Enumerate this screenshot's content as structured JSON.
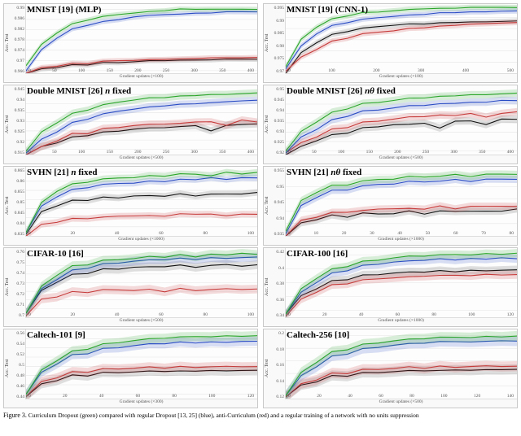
{
  "figure_caption_prefix": "Figure 3.",
  "figure_caption": "Curriculum Dropout (green) compared with regular Dropout [13, 25] (blue), anti-Curriculum (red) and a regular training of a network with no units suppression",
  "colors": {
    "curriculum": "#2aa52a",
    "curriculum_band": "rgba(42,165,42,0.18)",
    "dropout": "#2a4cc4",
    "dropout_band": "rgba(42,76,196,0.18)",
    "anticurriculum": "#c63a3a",
    "anticurriculum_band": "rgba(198,58,58,0.18)",
    "none": "#111111",
    "none_band": "rgba(0,0,0,0.12)",
    "grid": "#e5e5e5",
    "panel_bg": "#f9f9f9"
  },
  "global": {
    "line_width": 1,
    "title_fontsize": 11,
    "tick_fontsize": 5.5,
    "axis_label_fontsize": 6,
    "ylabel": "Acc. Test"
  },
  "panels": [
    {
      "id": "mnist-mlp",
      "title_html": "MNIST [19] (MLP)",
      "xlabel": "Gradient updates (×100)",
      "xlim": [
        0,
        400
      ],
      "xticks": [
        0,
        50,
        100,
        150,
        200,
        250,
        300,
        350,
        400
      ],
      "ylim": [
        0.965,
        0.992
      ],
      "yticks": [
        0.966,
        0.97,
        0.974,
        0.978,
        0.982,
        0.986,
        0.99
      ],
      "series": {
        "curriculum": [
          0.968,
          0.976,
          0.981,
          0.984,
          0.986,
          0.987,
          0.988,
          0.9885,
          0.989,
          0.9895,
          0.99,
          0.99,
          0.99,
          0.99,
          0.99,
          0.99
        ],
        "dropout": [
          0.966,
          0.974,
          0.979,
          0.982,
          0.984,
          0.985,
          0.986,
          0.987,
          0.9875,
          0.988,
          0.988,
          0.9885,
          0.9885,
          0.989,
          0.989,
          0.989
        ],
        "anticurriculum": [
          0.965,
          0.967,
          0.968,
          0.9685,
          0.969,
          0.9695,
          0.97,
          0.97,
          0.9702,
          0.9705,
          0.9705,
          0.9708,
          0.971,
          0.971,
          0.971,
          0.9712
        ],
        "none": [
          0.965,
          0.9665,
          0.9675,
          0.968,
          0.9685,
          0.969,
          0.9692,
          0.9695,
          0.9698,
          0.97,
          0.97,
          0.9702,
          0.9702,
          0.9705,
          0.9705,
          0.9705
        ]
      },
      "band": 0.001
    },
    {
      "id": "mnist-cnn1",
      "title_html": "MNIST [19] (CNN-1)",
      "xlabel": "Gradient updates (×100)",
      "xlim": [
        0,
        550
      ],
      "xticks": [
        0,
        100,
        200,
        300,
        400,
        500
      ],
      "ylim": [
        0.965,
        0.996
      ],
      "yticks": [
        0.97,
        0.975,
        0.98,
        0.985,
        0.99,
        0.995
      ],
      "series": {
        "curriculum": [
          0.968,
          0.98,
          0.986,
          0.989,
          0.991,
          0.992,
          0.9925,
          0.993,
          0.9935,
          0.994,
          0.994,
          0.9942,
          0.9945,
          0.9945,
          0.9945,
          0.9945
        ],
        "dropout": [
          0.967,
          0.977,
          0.983,
          0.986,
          0.988,
          0.989,
          0.99,
          0.9905,
          0.991,
          0.9915,
          0.992,
          0.9922,
          0.9925,
          0.9925,
          0.9928,
          0.993
        ],
        "anticurriculum": [
          0.966,
          0.972,
          0.976,
          0.979,
          0.981,
          0.9825,
          0.9835,
          0.984,
          0.985,
          0.9855,
          0.986,
          0.9865,
          0.987,
          0.9872,
          0.9875,
          0.9878
        ],
        "none": [
          0.965,
          0.974,
          0.979,
          0.982,
          0.984,
          0.985,
          0.986,
          0.9865,
          0.987,
          0.9872,
          0.9875,
          0.9878,
          0.988,
          0.988,
          0.9882,
          0.9885
        ]
      },
      "band": 0.0012
    },
    {
      "id": "dmnist-n",
      "title_html": "Double MNIST [26] <span class='ital'>n</span> fixed",
      "xlabel": "Gradient updates (×500)",
      "xlim": [
        0,
        400
      ],
      "xticks": [
        0,
        50,
        100,
        150,
        200,
        250,
        300,
        350,
        400
      ],
      "ylim": [
        0.912,
        0.95
      ],
      "yticks": [
        0.915,
        0.92,
        0.925,
        0.93,
        0.935,
        0.94,
        0.945
      ],
      "series": {
        "curriculum": [
          0.914,
          0.924,
          0.93,
          0.934,
          0.937,
          0.939,
          0.941,
          0.942,
          0.943,
          0.9435,
          0.944,
          0.9445,
          0.945,
          0.945,
          0.9455,
          0.946
        ],
        "dropout": [
          0.913,
          0.92,
          0.925,
          0.929,
          0.932,
          0.934,
          0.936,
          0.937,
          0.938,
          0.939,
          0.9395,
          0.94,
          0.9405,
          0.941,
          0.9415,
          0.942
        ],
        "anticurriculum": [
          0.912,
          0.916,
          0.92,
          0.923,
          0.924,
          0.926,
          0.927,
          0.928,
          0.9285,
          0.929,
          0.929,
          0.93,
          0.93,
          0.928,
          0.931,
          0.93
        ],
        "none": [
          0.912,
          0.916,
          0.919,
          0.921,
          0.923,
          0.924,
          0.925,
          0.926,
          0.9265,
          0.927,
          0.9272,
          0.928,
          0.925,
          0.928,
          0.9285,
          0.929
        ]
      },
      "band": 0.002
    },
    {
      "id": "dmnist-ntheta",
      "title_html": "Double MNIST [26] <span class='ital'>nθ</span> fixed",
      "xlabel": "Gradient updates (×500)",
      "xlim": [
        0,
        400
      ],
      "xticks": [
        0,
        50,
        100,
        150,
        200,
        250,
        300,
        350,
        400
      ],
      "ylim": [
        0.918,
        0.955
      ],
      "yticks": [
        0.92,
        0.925,
        0.93,
        0.935,
        0.94,
        0.945,
        0.95
      ],
      "series": {
        "curriculum": [
          0.92,
          0.93,
          0.936,
          0.94,
          0.943,
          0.945,
          0.946,
          0.947,
          0.948,
          0.9485,
          0.949,
          0.9495,
          0.95,
          0.95,
          0.9505,
          0.951
        ],
        "dropout": [
          0.919,
          0.927,
          0.932,
          0.936,
          0.939,
          0.941,
          0.942,
          0.943,
          0.944,
          0.9445,
          0.945,
          0.9455,
          0.946,
          0.946,
          0.947,
          0.947
        ],
        "anticurriculum": [
          0.919,
          0.924,
          0.928,
          0.931,
          0.933,
          0.935,
          0.936,
          0.937,
          0.938,
          0.9385,
          0.939,
          0.939,
          0.94,
          0.938,
          0.94,
          0.941
        ],
        "none": [
          0.918,
          0.922,
          0.926,
          0.928,
          0.93,
          0.932,
          0.933,
          0.934,
          0.934,
          0.935,
          0.932,
          0.936,
          0.936,
          0.934,
          0.937,
          0.937
        ]
      },
      "band": 0.002
    },
    {
      "id": "svhn-n",
      "title_html": "SVHN [21] <span class='ital'>n</span> fixed",
      "xlabel": "Gradient updates (×1000)",
      "xlim": [
        0,
        100
      ],
      "xticks": [
        0,
        20,
        40,
        60,
        80,
        100
      ],
      "ylim": [
        0.83,
        0.868
      ],
      "yticks": [
        0.835,
        0.84,
        0.845,
        0.85,
        0.855,
        0.86,
        0.865
      ],
      "series": {
        "curriculum": [
          0.832,
          0.848,
          0.855,
          0.858,
          0.86,
          0.861,
          0.862,
          0.862,
          0.863,
          0.863,
          0.864,
          0.864,
          0.863,
          0.865,
          0.864,
          0.865
        ],
        "dropout": [
          0.832,
          0.846,
          0.852,
          0.855,
          0.857,
          0.858,
          0.859,
          0.859,
          0.86,
          0.86,
          0.861,
          0.861,
          0.862,
          0.861,
          0.862,
          0.862
        ],
        "anticurriculum": [
          0.83,
          0.836,
          0.838,
          0.839,
          0.84,
          0.84,
          0.841,
          0.841,
          0.841,
          0.841,
          0.842,
          0.842,
          0.842,
          0.841,
          0.842,
          0.842
        ],
        "none": [
          0.831,
          0.843,
          0.847,
          0.849,
          0.85,
          0.851,
          0.851,
          0.852,
          0.852,
          0.852,
          0.853,
          0.852,
          0.853,
          0.853,
          0.853,
          0.854
        ]
      },
      "band": 0.0018
    },
    {
      "id": "svhn-ntheta",
      "title_html": "SVHN [21] <span class='ital'>nθ</span> fixed",
      "xlabel": "Gradient updates (×1000)",
      "xlim": [
        0,
        80
      ],
      "xticks": [
        0,
        10,
        20,
        30,
        40,
        50,
        60,
        70,
        80
      ],
      "ylim": [
        0.93,
        0.958
      ],
      "yticks": [
        0.935,
        0.94,
        0.945,
        0.95,
        0.955
      ],
      "series": {
        "curriculum": [
          0.932,
          0.944,
          0.948,
          0.95,
          0.951,
          0.952,
          0.953,
          0.953,
          0.954,
          0.954,
          0.954,
          0.955,
          0.954,
          0.955,
          0.955,
          0.955
        ],
        "dropout": [
          0.931,
          0.942,
          0.946,
          0.948,
          0.949,
          0.95,
          0.951,
          0.951,
          0.952,
          0.952,
          0.952,
          0.953,
          0.952,
          0.953,
          0.953,
          0.953
        ],
        "anticurriculum": [
          0.93,
          0.936,
          0.938,
          0.939,
          0.94,
          0.94,
          0.941,
          0.941,
          0.941,
          0.941,
          0.942,
          0.941,
          0.942,
          0.942,
          0.942,
          0.942
        ],
        "none": [
          0.93,
          0.935,
          0.937,
          0.938,
          0.938,
          0.939,
          0.939,
          0.939,
          0.94,
          0.939,
          0.94,
          0.94,
          0.94,
          0.94,
          0.94,
          0.941
        ]
      },
      "band": 0.0015
    },
    {
      "id": "cifar10",
      "title_html": "CIFAR-10 [16]",
      "xlabel": "Gradient updates (×500)",
      "xlim": [
        0,
        100
      ],
      "xticks": [
        0,
        20,
        40,
        60,
        80,
        100
      ],
      "ylim": [
        0.69,
        0.77
      ],
      "yticks": [
        0.7,
        0.71,
        0.72,
        0.73,
        0.74,
        0.75,
        0.76
      ],
      "series": {
        "curriculum": [
          0.695,
          0.725,
          0.74,
          0.748,
          0.752,
          0.755,
          0.757,
          0.758,
          0.76,
          0.76,
          0.762,
          0.76,
          0.763,
          0.762,
          0.764,
          0.763
        ],
        "dropout": [
          0.695,
          0.722,
          0.735,
          0.743,
          0.748,
          0.751,
          0.753,
          0.755,
          0.756,
          0.757,
          0.758,
          0.757,
          0.759,
          0.758,
          0.759,
          0.76
        ],
        "anticurriculum": [
          0.692,
          0.71,
          0.715,
          0.718,
          0.72,
          0.721,
          0.722,
          0.721,
          0.722,
          0.72,
          0.723,
          0.721,
          0.722,
          0.723,
          0.722,
          0.723
        ],
        "none": [
          0.695,
          0.72,
          0.732,
          0.738,
          0.742,
          0.745,
          0.746,
          0.748,
          0.748,
          0.749,
          0.75,
          0.748,
          0.75,
          0.751,
          0.749,
          0.751
        ]
      },
      "band": 0.005
    },
    {
      "id": "cifar100",
      "title_html": "CIFAR-100 [16]",
      "xlabel": "Gradient updates (×1000)",
      "xlim": [
        0,
        120
      ],
      "xticks": [
        0,
        20,
        40,
        60,
        80,
        100,
        120
      ],
      "ylim": [
        0.33,
        0.43
      ],
      "yticks": [
        0.34,
        0.36,
        0.38,
        0.4,
        0.42
      ],
      "series": {
        "curriculum": [
          0.335,
          0.37,
          0.388,
          0.398,
          0.405,
          0.41,
          0.413,
          0.416,
          0.418,
          0.419,
          0.42,
          0.421,
          0.42,
          0.422,
          0.421,
          0.423
        ],
        "dropout": [
          0.335,
          0.365,
          0.382,
          0.392,
          0.399,
          0.404,
          0.407,
          0.41,
          0.411,
          0.413,
          0.414,
          0.413,
          0.415,
          0.414,
          0.416,
          0.415
        ],
        "anticurriculum": [
          0.332,
          0.355,
          0.368,
          0.375,
          0.38,
          0.383,
          0.386,
          0.387,
          0.388,
          0.39,
          0.39,
          0.391,
          0.39,
          0.392,
          0.391,
          0.392
        ],
        "none": [
          0.335,
          0.36,
          0.373,
          0.381,
          0.386,
          0.39,
          0.392,
          0.394,
          0.395,
          0.396,
          0.397,
          0.396,
          0.398,
          0.397,
          0.398,
          0.399
        ]
      },
      "band": 0.006
    },
    {
      "id": "caltech101",
      "title_html": "Caltech-101 [9]",
      "xlabel": "Gradient updates (×300)",
      "xlim": [
        0,
        120
      ],
      "xticks": [
        0,
        20,
        40,
        60,
        80,
        100,
        120
      ],
      "ylim": [
        0.43,
        0.58
      ],
      "yticks": [
        0.44,
        0.46,
        0.48,
        0.5,
        0.52,
        0.54,
        0.56
      ],
      "series": {
        "curriculum": [
          0.44,
          0.49,
          0.515,
          0.53,
          0.54,
          0.547,
          0.552,
          0.556,
          0.559,
          0.562,
          0.563,
          0.565,
          0.564,
          0.566,
          0.565,
          0.567
        ],
        "dropout": [
          0.44,
          0.485,
          0.508,
          0.522,
          0.53,
          0.537,
          0.541,
          0.545,
          0.548,
          0.55,
          0.552,
          0.551,
          0.553,
          0.552,
          0.554,
          0.555
        ],
        "anticurriculum": [
          0.435,
          0.465,
          0.478,
          0.485,
          0.49,
          0.493,
          0.495,
          0.496,
          0.498,
          0.497,
          0.499,
          0.498,
          0.499,
          0.5,
          0.499,
          0.5
        ],
        "none": [
          0.435,
          0.46,
          0.472,
          0.478,
          0.482,
          0.485,
          0.487,
          0.488,
          0.489,
          0.49,
          0.489,
          0.49,
          0.491,
          0.49,
          0.491,
          0.492
        ]
      },
      "band": 0.01
    },
    {
      "id": "caltech256",
      "title_html": "Caltech-256 [10]",
      "xlabel": "Gradient updates (×500)",
      "xlim": [
        0,
        140
      ],
      "xticks": [
        0,
        20,
        40,
        60,
        80,
        100,
        120,
        140
      ],
      "ylim": [
        0.1,
        0.21
      ],
      "yticks": [
        0.12,
        0.14,
        0.16,
        0.18,
        0.2
      ],
      "series": {
        "curriculum": [
          0.105,
          0.14,
          0.16,
          0.172,
          0.18,
          0.185,
          0.189,
          0.192,
          0.194,
          0.196,
          0.197,
          0.198,
          0.197,
          0.199,
          0.198,
          0.2
        ],
        "dropout": [
          0.105,
          0.135,
          0.153,
          0.165,
          0.173,
          0.178,
          0.182,
          0.185,
          0.187,
          0.189,
          0.19,
          0.191,
          0.19,
          0.191,
          0.192,
          0.192
        ],
        "anticurriculum": [
          0.103,
          0.122,
          0.132,
          0.138,
          0.142,
          0.145,
          0.147,
          0.148,
          0.15,
          0.149,
          0.151,
          0.15,
          0.151,
          0.152,
          0.151,
          0.152
        ],
        "none": [
          0.103,
          0.12,
          0.129,
          0.134,
          0.138,
          0.14,
          0.142,
          0.143,
          0.144,
          0.145,
          0.144,
          0.146,
          0.145,
          0.146,
          0.146,
          0.147
        ]
      },
      "band": 0.008
    }
  ]
}
